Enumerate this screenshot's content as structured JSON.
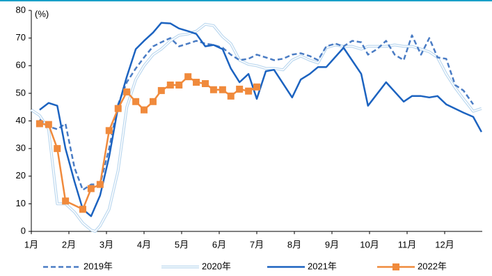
{
  "chart_data": {
    "type": "line",
    "y_label": "(%)",
    "xlim": [
      1,
      13
    ],
    "xticks": [
      {
        "value": 1,
        "label": "1月"
      },
      {
        "value": 2,
        "label": "2月"
      },
      {
        "value": 3,
        "label": "3月"
      },
      {
        "value": 4,
        "label": "4月"
      },
      {
        "value": 5,
        "label": "5月"
      },
      {
        "value": 6,
        "label": "6月"
      },
      {
        "value": 7,
        "label": "7月"
      },
      {
        "value": 8,
        "label": "8月"
      },
      {
        "value": 9,
        "label": "9月"
      },
      {
        "value": 10,
        "label": "10月"
      },
      {
        "value": 11,
        "label": "11月"
      },
      {
        "value": 12,
        "label": "12月"
      }
    ],
    "ylim": [
      0,
      80
    ],
    "yticks": [
      0,
      10,
      20,
      30,
      40,
      50,
      60,
      70,
      80
    ],
    "legend": "bottom",
    "series": [
      {
        "name": "2019年",
        "color": "#4a7cc4",
        "style": "dashed",
        "x": [
          1.22,
          1.46,
          1.69,
          1.91,
          2.15,
          2.37,
          2.59,
          2.83,
          3.07,
          3.31,
          3.54,
          3.78,
          4.0,
          4.24,
          4.46,
          4.7,
          4.93,
          5.17,
          5.39,
          5.63,
          5.85,
          6.09,
          6.31,
          6.54,
          6.78,
          7.0,
          7.24,
          7.46,
          7.7,
          7.94,
          8.17,
          8.41,
          8.63,
          8.85,
          9.09,
          9.31,
          9.54,
          9.78,
          9.96,
          10.2,
          10.44,
          10.67,
          10.91,
          11.13,
          11.37,
          11.59,
          11.81,
          12.04,
          12.28,
          12.5,
          12.76
        ],
        "values": [
          40.5,
          38,
          37,
          39,
          23,
          15,
          17,
          17,
          30,
          46,
          54,
          59,
          63,
          67,
          68.5,
          70,
          67,
          68,
          69,
          68,
          67.5,
          66.5,
          64,
          62,
          62.5,
          64,
          63,
          62,
          62.5,
          64,
          64.5,
          63.5,
          62,
          67,
          68,
          67,
          69,
          68.5,
          64,
          66,
          69,
          64,
          62,
          71,
          64,
          70,
          63,
          62.5,
          53,
          51,
          46
        ]
      },
      {
        "name": "2020年",
        "color": "#bcd8ef",
        "style": "double",
        "x": [
          1.0,
          1.22,
          1.46,
          1.69,
          1.91,
          2.15,
          2.37,
          2.59,
          2.7,
          2.83,
          3.07,
          3.31,
          3.54,
          3.78,
          4.0,
          4.24,
          4.46,
          4.7,
          4.93,
          5.17,
          5.39,
          5.63,
          5.85,
          6.09,
          6.31,
          6.54,
          6.78,
          7.0,
          7.24,
          7.46,
          7.7,
          7.94,
          8.17,
          8.41,
          8.63,
          8.85,
          9.09,
          9.31,
          9.54,
          9.78,
          9.96,
          10.2,
          10.44,
          10.67,
          10.91,
          11.13,
          11.37,
          11.59,
          11.81,
          12.04,
          12.28,
          12.5,
          12.76,
          12.98
        ],
        "values": [
          44,
          42,
          37,
          10,
          10,
          7,
          3,
          0.5,
          0,
          2,
          8,
          22,
          45,
          55,
          60,
          64,
          66,
          69,
          71,
          71.5,
          72.5,
          75,
          74.5,
          70.5,
          68,
          62,
          60.5,
          60,
          59,
          59,
          58.5,
          62,
          63.5,
          62,
          61,
          66.5,
          67.5,
          67,
          67,
          66,
          67,
          67,
          67,
          67.5,
          67,
          67,
          66,
          65,
          63,
          57,
          52,
          48,
          43.5,
          44.5
        ]
      },
      {
        "name": "2021年",
        "color": "#1c63c0",
        "style": "solid",
        "x": [
          1.22,
          1.46,
          1.69,
          1.91,
          2.15,
          2.37,
          2.59,
          2.83,
          3.07,
          3.31,
          3.54,
          3.78,
          4.0,
          4.24,
          4.46,
          4.7,
          4.93,
          5.17,
          5.39,
          5.63,
          5.85,
          6.09,
          6.31,
          6.54,
          6.78,
          7.0,
          7.24,
          7.46,
          7.94,
          8.17,
          8.41,
          8.63,
          8.85,
          9.31,
          9.78,
          9.96,
          10.44,
          10.91,
          11.13,
          11.37,
          11.59,
          11.81,
          12.04,
          12.5,
          12.76,
          12.98
        ],
        "values": [
          44,
          46.5,
          45.5,
          30,
          18,
          8,
          5.5,
          13,
          27,
          45,
          56,
          66,
          69,
          72,
          75.5,
          75.3,
          73.5,
          72.5,
          71.5,
          67,
          67.5,
          66,
          59,
          54,
          57,
          48,
          58,
          58.5,
          48.5,
          55,
          57,
          59.5,
          59.5,
          66.5,
          57,
          45.5,
          54,
          47,
          49,
          49,
          48.5,
          49,
          46,
          43,
          41.5,
          36
        ]
      },
      {
        "name": "2022年",
        "color": "#f08a3c",
        "style": "solid",
        "marker": "square",
        "x": [
          1.22,
          1.46,
          1.69,
          1.91,
          2.37,
          2.59,
          2.83,
          3.07,
          3.31,
          3.54,
          3.78,
          4.0,
          4.24,
          4.46,
          4.7,
          4.93,
          5.17,
          5.39,
          5.63,
          5.85,
          6.09,
          6.31,
          6.54,
          6.78,
          7.0
        ],
        "values": [
          39,
          38.7,
          30,
          11,
          8,
          15.5,
          17,
          36.5,
          44.5,
          50.5,
          47,
          44,
          47,
          51,
          53,
          53,
          56,
          54,
          53.5,
          51.3,
          51.3,
          49,
          51.5,
          50.8,
          52.3
        ]
      }
    ]
  }
}
